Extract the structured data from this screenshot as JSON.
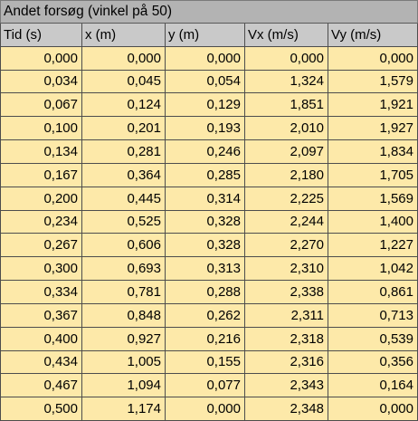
{
  "table": {
    "title": "Andet forsøg (vinkel på 50)",
    "headers": [
      "Tid (s)",
      "x (m)",
      "y (m)",
      "Vx (m/s)",
      "Vy (m/s)"
    ],
    "rows": [
      [
        "0,000",
        "0,000",
        "0,000",
        "0,000",
        "0,000"
      ],
      [
        "0,034",
        "0,045",
        "0,054",
        "1,324",
        "1,579"
      ],
      [
        "0,067",
        "0,124",
        "0,129",
        "1,851",
        "1,921"
      ],
      [
        "0,100",
        "0,201",
        "0,193",
        "2,010",
        "1,927"
      ],
      [
        "0,134",
        "0,281",
        "0,246",
        "2,097",
        "1,834"
      ],
      [
        "0,167",
        "0,364",
        "0,285",
        "2,180",
        "1,705"
      ],
      [
        "0,200",
        "0,445",
        "0,314",
        "2,225",
        "1,569"
      ],
      [
        "0,234",
        "0,525",
        "0,328",
        "2,244",
        "1,400"
      ],
      [
        "0,267",
        "0,606",
        "0,328",
        "2,270",
        "1,227"
      ],
      [
        "0,300",
        "0,693",
        "0,313",
        "2,310",
        "1,042"
      ],
      [
        "0,334",
        "0,781",
        "0,288",
        "2,338",
        "0,861"
      ],
      [
        "0,367",
        "0,848",
        "0,262",
        "2,311",
        "0,713"
      ],
      [
        "0,400",
        "0,927",
        "0,216",
        "2,318",
        "0,539"
      ],
      [
        "0,434",
        "1,005",
        "0,155",
        "2,316",
        "0,356"
      ],
      [
        "0,467",
        "1,094",
        "0,077",
        "2,343",
        "0,164"
      ],
      [
        "0,500",
        "1,174",
        "0,000",
        "2,348",
        "0,000"
      ]
    ]
  },
  "colors": {
    "title_bg": "#b3b3b3",
    "header_bg": "#c9c9c9",
    "cell_bg": "#fde9a9",
    "border": "#4d4d4d"
  }
}
